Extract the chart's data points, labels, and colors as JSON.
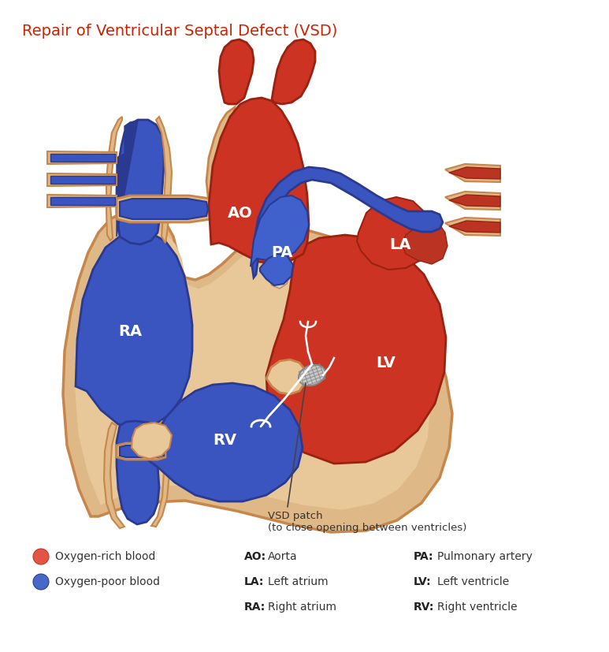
{
  "title": "Repair of Ventricular Septal Defect (VSD)",
  "title_color": "#cc2200",
  "title_fontsize": 14,
  "bg_color": "#ffffff",
  "label_AO": "AO",
  "label_LA": "LA",
  "label_PA": "PA",
  "label_RA": "RA",
  "label_RV": "RV",
  "label_LV": "LV",
  "annotation_text": "VSD patch\n(to close opening between ventricles)",
  "annotation_color": "#333333",
  "legend_items": [
    {
      "label": "Oxygen-rich blood",
      "color": "#e05040"
    },
    {
      "label": "Oxygen-poor blood",
      "color": "#4868c8"
    }
  ],
  "legend_labels": {
    "AO": "Aorta",
    "PA": "Pulmonary artery",
    "LA": "Left atrium",
    "LV": "Left ventricle",
    "RA": "Right atrium",
    "RV": "Right ventricle"
  },
  "skin_color": "#deb887",
  "skin_outline": "#c8864a",
  "skin_inner": "#e8c898",
  "blue": "#3a55c0",
  "blue_dark": "#2a3a90",
  "blue_mid": "#4060cc",
  "blue_light": "#5070d8",
  "red": "#cc3322",
  "red_dark": "#992211",
  "red_mid": "#bb3322",
  "red_light": "#dd5544",
  "red_brown": "#a03020",
  "patch_gray": "#c0c0c0",
  "white": "#ffffff"
}
